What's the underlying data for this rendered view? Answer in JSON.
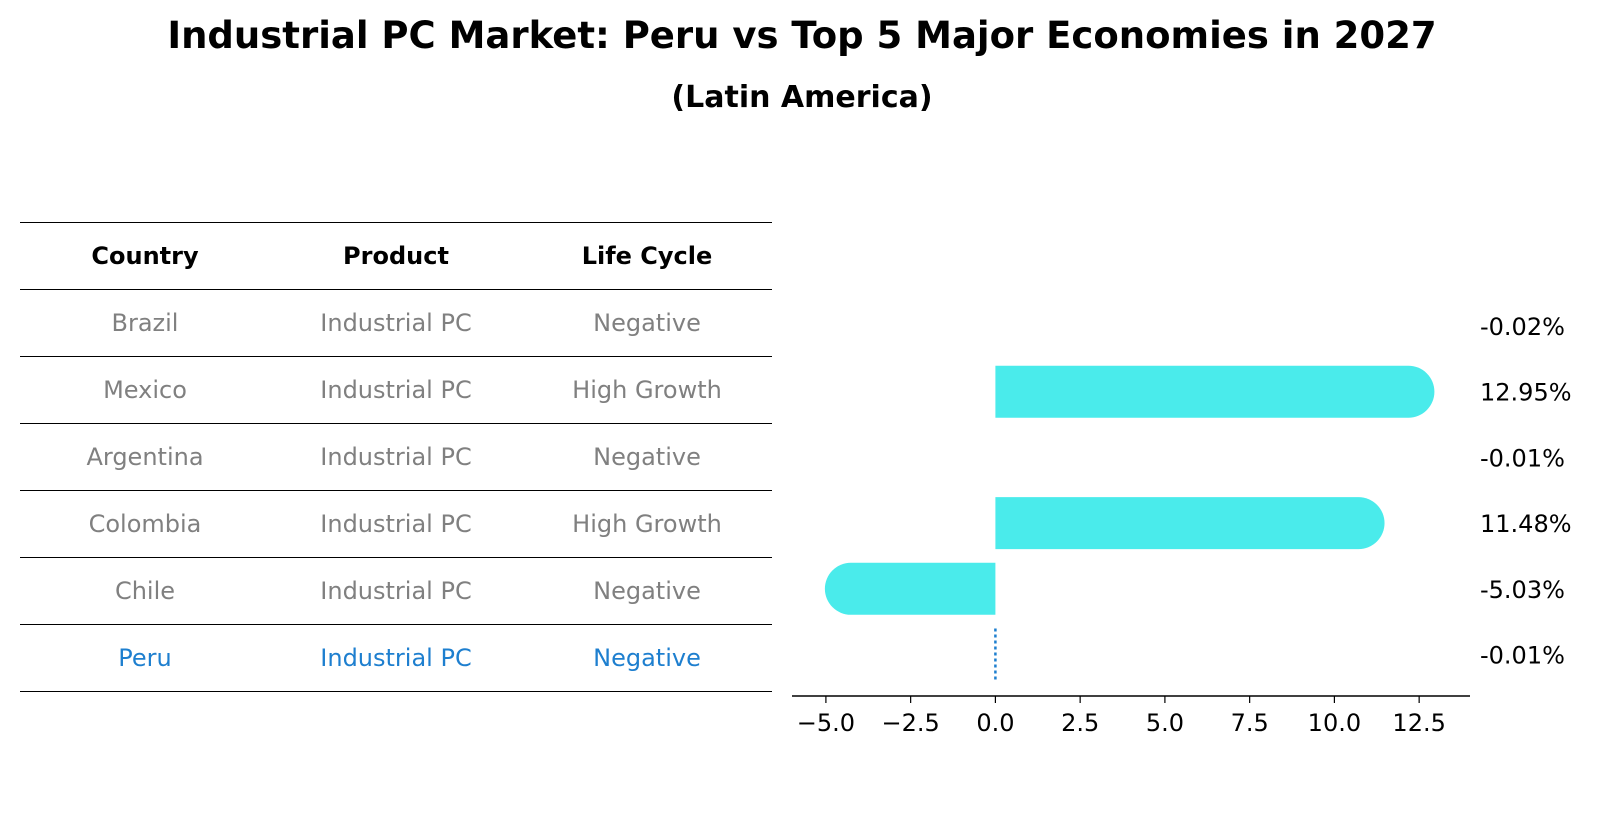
{
  "title": "Industrial PC Market: Peru vs Top 5 Major Economies in 2027",
  "subtitle": "(Latin America)",
  "table": {
    "headers": [
      "Country",
      "Product",
      "Life Cycle"
    ],
    "rows": [
      {
        "country": "Brazil",
        "product": "Industrial PC",
        "life_cycle": "Negative"
      },
      {
        "country": "Mexico",
        "product": "Industrial PC",
        "life_cycle": "High Growth"
      },
      {
        "country": "Argentina",
        "product": "Industrial PC",
        "life_cycle": "Negative"
      },
      {
        "country": "Colombia",
        "product": "Industrial PC",
        "life_cycle": "High Growth"
      },
      {
        "country": "Chile",
        "product": "Industrial PC",
        "life_cycle": "Negative"
      },
      {
        "country": "Peru",
        "product": "Industrial PC",
        "life_cycle": "Negative"
      }
    ],
    "highlight_color": "#1e7fcf",
    "text_color": "#808080"
  },
  "chart_data": {
    "type": "bar",
    "orientation": "horizontal",
    "categories": [
      "Brazil",
      "Mexico",
      "Argentina",
      "Colombia",
      "Chile",
      "Peru"
    ],
    "values": [
      -0.02,
      12.95,
      -0.01,
      11.48,
      -5.03,
      -0.01
    ],
    "value_labels": [
      "-0.02%",
      "12.95%",
      "-0.01%",
      "11.48%",
      "-5.03%",
      "-0.01%"
    ],
    "xlim": [
      -6,
      14
    ],
    "xticks": [
      -5.0,
      -2.5,
      0.0,
      2.5,
      5.0,
      7.5,
      10.0,
      12.5
    ],
    "xtick_labels": [
      "−5.0",
      "−2.5",
      "0.0",
      "2.5",
      "5.0",
      "7.5",
      "10.0",
      "12.5"
    ],
    "bar_color": "#4aebeb",
    "zero_line_color": "#1e7fcf",
    "grid": false
  }
}
